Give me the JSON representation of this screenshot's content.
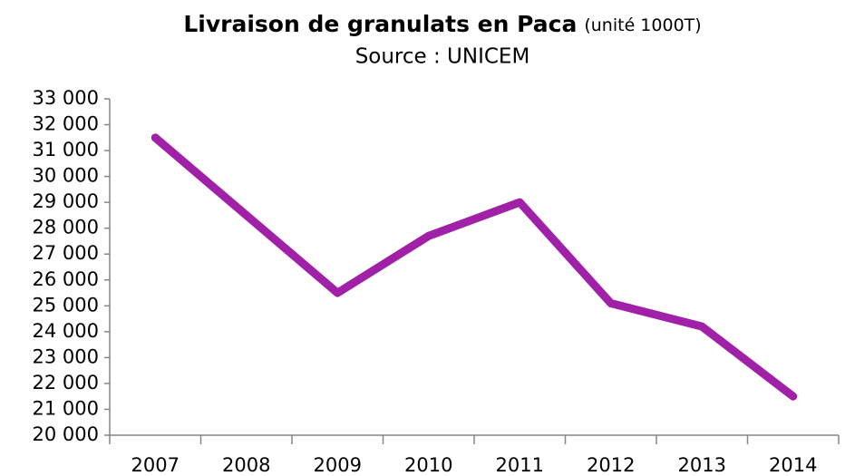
{
  "chart_data": {
    "type": "line",
    "title": "Livraison de granulats en Paca",
    "title_note": "(unité 1000T)",
    "subtitle": "Source : UNICEM",
    "categories": [
      "2007",
      "2008",
      "2009",
      "2010",
      "2011",
      "2012",
      "2013",
      "2014"
    ],
    "series": [
      {
        "name": "Livraison",
        "color": "#a020a8",
        "values": [
          31500,
          28500,
          25500,
          27700,
          29000,
          25100,
          24200,
          21500
        ]
      }
    ],
    "ylim": [
      20000,
      33000
    ],
    "yticks": [
      {
        "value": 20000,
        "label": "20 000"
      },
      {
        "value": 21000,
        "label": "21 000"
      },
      {
        "value": 22000,
        "label": "22 000"
      },
      {
        "value": 23000,
        "label": "23 000"
      },
      {
        "value": 24000,
        "label": "24 000"
      },
      {
        "value": 25000,
        "label": "25 000"
      },
      {
        "value": 26000,
        "label": "26 000"
      },
      {
        "value": 27000,
        "label": "27 000"
      },
      {
        "value": 28000,
        "label": "28 000"
      },
      {
        "value": 29000,
        "label": "29 000"
      },
      {
        "value": 30000,
        "label": "30 000"
      },
      {
        "value": 31000,
        "label": "31 000"
      },
      {
        "value": 32000,
        "label": "32 000"
      },
      {
        "value": 33000,
        "label": "33 000"
      }
    ],
    "grid": false
  }
}
